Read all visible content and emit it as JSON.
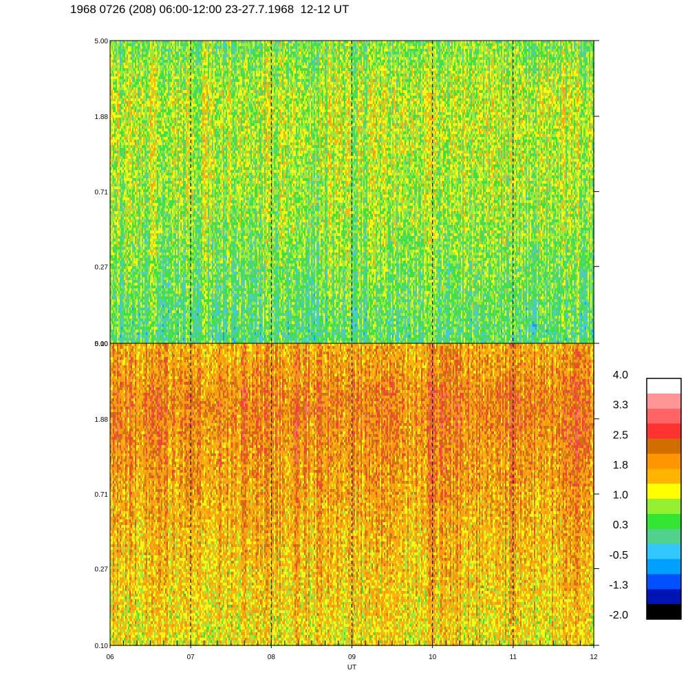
{
  "title": "1968 0726 (208) 06:00-12:00 23-27.7.1968  12-12 UT",
  "chart_data": {
    "type": "heatmap",
    "xlabel": "UT",
    "x_ticks": [
      "06",
      "07",
      "08",
      "09",
      "10",
      "11",
      "12"
    ],
    "x_range": [
      6,
      12
    ],
    "y_ticks": [
      "0.10",
      "0.27",
      "0.71",
      "1.88",
      "5.00"
    ],
    "y_range": [
      0.1,
      5.0
    ],
    "y_scale": "log",
    "dashed_hour_lines": [
      7,
      8,
      9,
      10,
      11
    ],
    "panels": [
      {
        "position": "top",
        "dominant_levels": [
          0.3,
          0.8,
          1.0
        ]
      },
      {
        "position": "bottom",
        "dominant_levels": [
          1.3,
          1.8,
          2.2
        ]
      }
    ],
    "colorbar": {
      "labels": [
        "4.0",
        "3.3",
        "2.5",
        "1.8",
        "1.0",
        "0.3",
        "-0.5",
        "-1.3",
        "-2.0"
      ],
      "colors": [
        "#000000",
        "#0014b4",
        "#0050ff",
        "#00a0ff",
        "#32c8ff",
        "#50d28c",
        "#32e632",
        "#96f032",
        "#ffff00",
        "#ffb400",
        "#ff9600",
        "#d26e00",
        "#ff3232",
        "#ff6464",
        "#ff9696",
        "#ffffff"
      ]
    }
  }
}
